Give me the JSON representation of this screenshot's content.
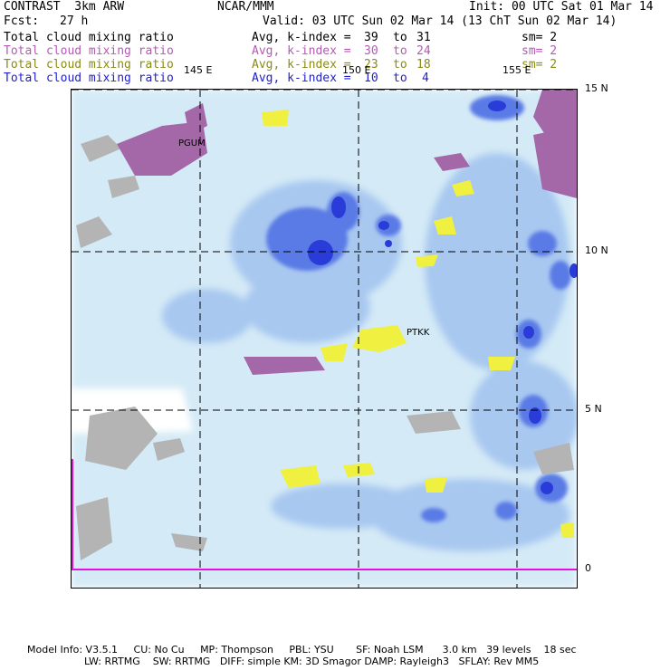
{
  "header": {
    "model": "CONTRAST  3km ARW",
    "center": "NCAR/MMM",
    "init": "Init: 00 UTC Sat 01 Mar 14",
    "fcst_label": "Fcst:",
    "fcst_value": "27 h",
    "valid": "Valid: 03 UTC Sun 02 Mar 14 (13 ChT Sun 02 Mar 14)"
  },
  "fields": [
    {
      "name": "Total cloud mixing ratio",
      "stat": "Avg, k-index =",
      "from": "39",
      "to": "31",
      "sm": "sm= 2",
      "color": "#000000"
    },
    {
      "name": "Total cloud mixing ratio",
      "stat": "Avg, k-index =",
      "from": "30",
      "to": "24",
      "sm": "sm= 2",
      "color": "#b45ab4"
    },
    {
      "name": "Total cloud mixing ratio",
      "stat": "Avg, k-index =",
      "from": "23",
      "to": "18",
      "sm": "sm= 2",
      "color": "#8a8a1a"
    },
    {
      "name": "Total cloud mixing ratio",
      "stat": "Avg, k-index =",
      "from": "10",
      "to": "4",
      "sm": "",
      "color": "#2020d0"
    }
  ],
  "word_to": "to",
  "map": {
    "lon_labels": [
      "145 E",
      "150 E",
      "155 E"
    ],
    "lat_labels": [
      "15 N",
      "10 N",
      "5 N",
      "0"
    ],
    "stations": [
      "PGUM",
      "PTKK"
    ],
    "colors": {
      "light_cloud": "#d4eaf6",
      "mid_cloud": "#a8c8f0",
      "dense_cloud": "#5a7ae6",
      "core_cloud": "#2a3cd8",
      "purple": "#a468a8",
      "yellow": "#f0f040",
      "gray": "#b4b4b4",
      "magenta": "#e010e0"
    }
  },
  "footer": {
    "line1": "Model Info: V3.5.1     CU: No Cu     MP: Thompson     PBL: YSU       SF: Noah LSM      3.0 km   39 levels    18 sec",
    "line2": "                  LW: RRTMG    SW: RRTMG   DIFF: simple KM: 3D Smagor DAMP: Rayleigh3   SFLAY: Rev MM5"
  }
}
